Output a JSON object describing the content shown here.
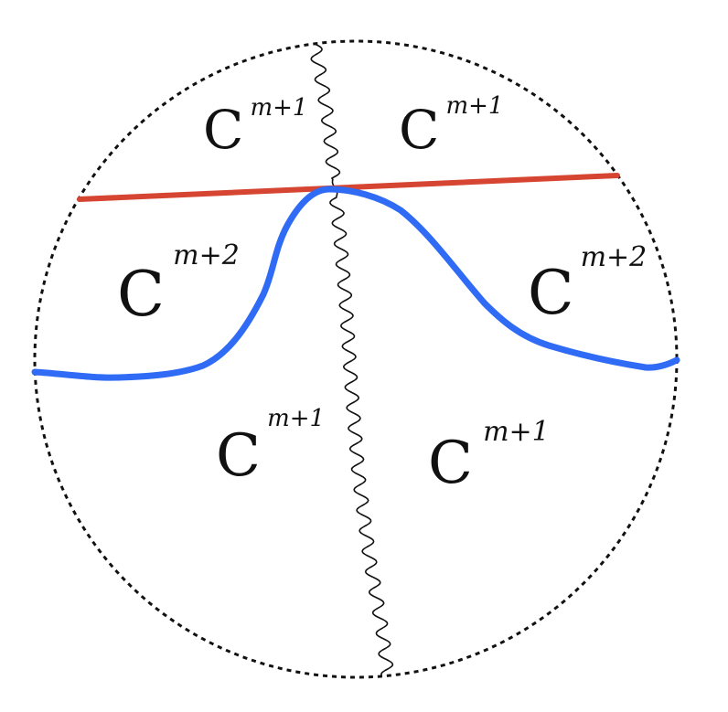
{
  "colors": {
    "boundary": "#111111",
    "red_line": "#d64531",
    "blue_curve": "#2f6bf5",
    "branch_cut": "#111111",
    "text": "#111111"
  },
  "regions": {
    "top_left": {
      "base": "C",
      "sup": "m+1"
    },
    "top_right": {
      "base": "C",
      "sup": "m+1"
    },
    "middle_left": {
      "base": "C",
      "sup": "m+2"
    },
    "middle_right": {
      "base": "C",
      "sup": "m+2"
    },
    "bottom_left": {
      "base": "C",
      "sup": "m+1"
    },
    "bottom_right": {
      "base": "C",
      "sup": "m+1"
    }
  }
}
